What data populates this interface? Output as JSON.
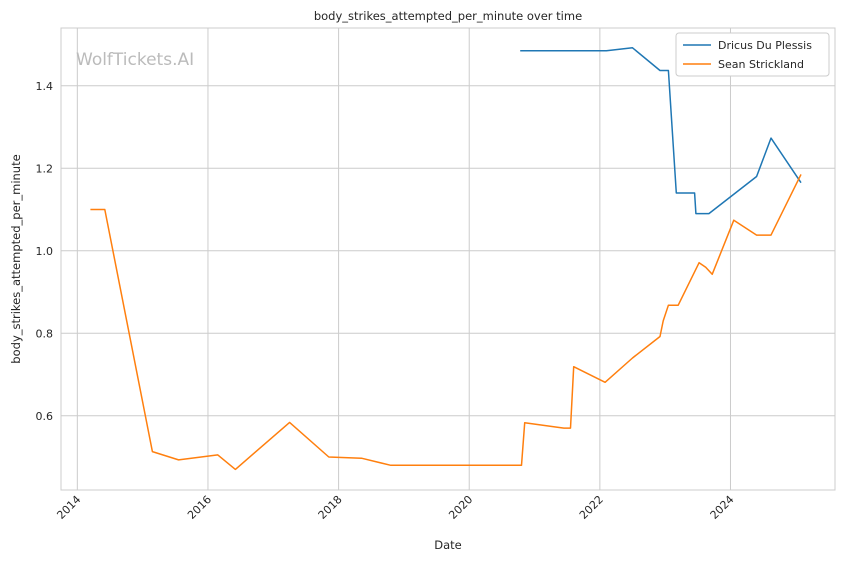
{
  "chart_data": {
    "type": "line",
    "title": "body_strikes_attempted_per_minute over time",
    "xlabel": "Date",
    "ylabel": "body_strikes_attempted_per_minute",
    "watermark": "WolfTickets.AI",
    "xlim": [
      2013.75,
      2025.6
    ],
    "ylim": [
      0.42,
      1.54
    ],
    "x_ticks": [
      2014,
      2016,
      2018,
      2020,
      2022,
      2024
    ],
    "y_ticks": [
      0.6,
      0.8,
      1.0,
      1.2,
      1.4
    ],
    "y_tick_labels": [
      "0.6",
      "0.8",
      "1.0",
      "1.2",
      "1.4"
    ],
    "grid": true,
    "legend_position": "top-right",
    "series": [
      {
        "name": "Dricus Du Plessis",
        "color": "#1f77b4",
        "points": [
          [
            2020.78,
            1.485
          ],
          [
            2022.1,
            1.485
          ],
          [
            2022.5,
            1.492
          ],
          [
            2022.92,
            1.437
          ],
          [
            2023.05,
            1.437
          ],
          [
            2023.17,
            1.14
          ],
          [
            2023.45,
            1.14
          ],
          [
            2023.47,
            1.09
          ],
          [
            2023.67,
            1.09
          ],
          [
            2024.4,
            1.18
          ],
          [
            2024.62,
            1.273
          ],
          [
            2025.08,
            1.165
          ]
        ]
      },
      {
        "name": "Sean Strickland",
        "color": "#ff7f0e",
        "points": [
          [
            2014.2,
            1.1
          ],
          [
            2014.42,
            1.1
          ],
          [
            2015.15,
            0.513
          ],
          [
            2015.55,
            0.493
          ],
          [
            2016.15,
            0.505
          ],
          [
            2016.42,
            0.47
          ],
          [
            2017.25,
            0.584
          ],
          [
            2017.85,
            0.5
          ],
          [
            2018.35,
            0.497
          ],
          [
            2018.8,
            0.48
          ],
          [
            2020.8,
            0.48
          ],
          [
            2020.85,
            0.583
          ],
          [
            2021.35,
            0.572
          ],
          [
            2021.45,
            0.57
          ],
          [
            2021.55,
            0.57
          ],
          [
            2021.6,
            0.719
          ],
          [
            2022.08,
            0.681
          ],
          [
            2022.5,
            0.74
          ],
          [
            2022.92,
            0.792
          ],
          [
            2022.97,
            0.83
          ],
          [
            2023.05,
            0.868
          ],
          [
            2023.2,
            0.868
          ],
          [
            2023.52,
            0.971
          ],
          [
            2023.62,
            0.96
          ],
          [
            2023.72,
            0.943
          ],
          [
            2024.05,
            1.074
          ],
          [
            2024.4,
            1.038
          ],
          [
            2024.62,
            1.038
          ],
          [
            2025.08,
            1.185
          ]
        ]
      }
    ]
  }
}
